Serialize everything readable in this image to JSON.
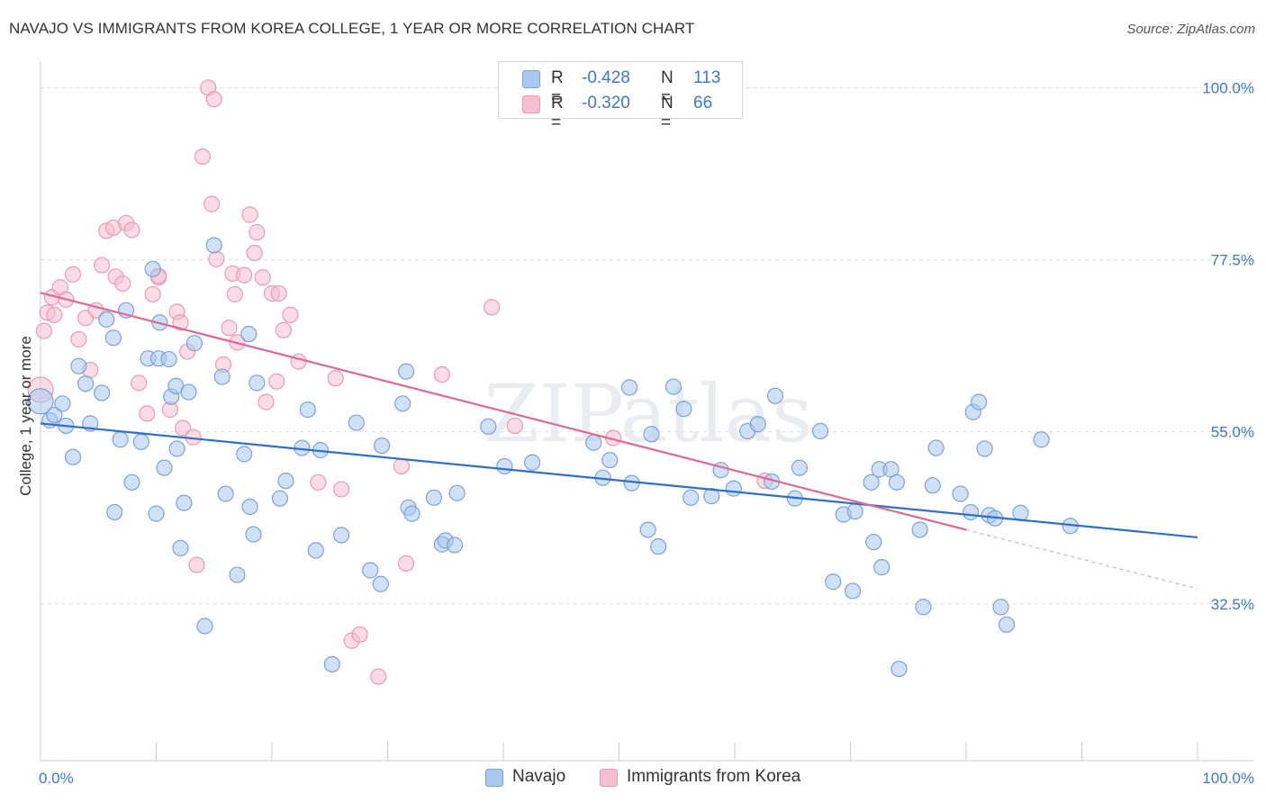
{
  "header": {
    "title": "NAVAJO VS IMMIGRANTS FROM KOREA COLLEGE, 1 YEAR OR MORE CORRELATION CHART",
    "source": "Source: ZipAtlas.com"
  },
  "stats": {
    "navajo": {
      "r_label": "R =",
      "r_value": "-0.428",
      "n_label": "N =",
      "n_value": "113"
    },
    "korea": {
      "r_label": "R =",
      "r_value": "-0.320",
      "n_label": "N =",
      "n_value": "66"
    }
  },
  "legend": {
    "navajo": "Navajo",
    "korea": "Immigrants from Korea"
  },
  "watermark": "ZIPatlas",
  "colors": {
    "navajo_fill": "#aac8ee",
    "navajo_stroke": "#7aa3d8",
    "navajo_line": "#2f6fcb",
    "korea_fill": "#f6bfcf",
    "korea_stroke": "#ec9ab3",
    "korea_line": "#e06893",
    "tick_label": "#3b78d0",
    "grid": "#dddddd"
  },
  "chart_data": {
    "type": "scatter",
    "ylabel": "College, 1 year or more",
    "xlabel": "",
    "xlim": [
      0,
      100
    ],
    "ylim": [
      12.0,
      103.0
    ],
    "x_tick_labels": [
      "0.0%",
      "100.0%"
    ],
    "y_ticks": [
      32.5,
      55.0,
      77.5,
      100.0
    ],
    "y_tick_labels": [
      "32.5%",
      "55.0%",
      "77.5%",
      "100.0%"
    ],
    "grid": true,
    "series": [
      {
        "name": "Navajo",
        "trend": {
          "x": [
            0,
            100
          ],
          "y": [
            56.1,
            41.2
          ]
        },
        "points": [
          [
            0.0,
            59.0,
            2
          ],
          [
            0.8,
            56.5,
            1
          ],
          [
            1.2,
            57.2,
            1
          ],
          [
            1.9,
            58.7,
            1
          ],
          [
            2.2,
            55.8,
            1
          ],
          [
            2.8,
            51.7,
            1
          ],
          [
            3.3,
            63.6,
            1
          ],
          [
            3.9,
            61.3,
            1
          ],
          [
            4.3,
            56.1,
            1
          ],
          [
            5.3,
            60.1,
            1
          ],
          [
            5.7,
            69.7,
            1
          ],
          [
            6.3,
            67.3,
            1
          ],
          [
            6.4,
            44.5,
            1
          ],
          [
            6.9,
            54.0,
            1
          ],
          [
            7.4,
            70.9,
            1
          ],
          [
            7.9,
            48.4,
            1
          ],
          [
            8.7,
            53.7,
            1
          ],
          [
            9.3,
            64.6,
            1
          ],
          [
            9.7,
            76.3,
            1
          ],
          [
            10.0,
            44.3,
            1
          ],
          [
            10.2,
            64.6,
            1
          ],
          [
            10.3,
            69.3,
            1
          ],
          [
            10.7,
            50.3,
            1
          ],
          [
            11.1,
            64.5,
            1
          ],
          [
            11.3,
            59.6,
            1
          ],
          [
            11.7,
            61.0,
            1
          ],
          [
            11.8,
            52.8,
            1
          ],
          [
            12.1,
            39.8,
            1
          ],
          [
            12.4,
            45.7,
            1
          ],
          [
            12.8,
            60.2,
            1
          ],
          [
            13.3,
            66.6,
            1
          ],
          [
            14.2,
            29.6,
            1
          ],
          [
            15.0,
            79.4,
            1
          ],
          [
            15.7,
            62.2,
            1
          ],
          [
            16.0,
            46.9,
            1
          ],
          [
            17.0,
            36.3,
            1
          ],
          [
            17.6,
            52.1,
            1
          ],
          [
            18.0,
            67.8,
            1
          ],
          [
            18.1,
            45.2,
            1
          ],
          [
            18.4,
            41.6,
            1
          ],
          [
            18.7,
            61.4,
            1
          ],
          [
            20.7,
            46.3,
            1
          ],
          [
            21.2,
            48.6,
            1
          ],
          [
            22.6,
            52.9,
            1
          ],
          [
            23.1,
            57.9,
            1
          ],
          [
            23.8,
            39.5,
            1
          ],
          [
            24.2,
            52.6,
            1
          ],
          [
            25.2,
            24.6,
            1
          ],
          [
            26.0,
            41.5,
            1
          ],
          [
            27.3,
            56.2,
            1
          ],
          [
            28.5,
            36.9,
            1
          ],
          [
            29.4,
            35.1,
            1
          ],
          [
            29.5,
            53.2,
            1
          ],
          [
            31.3,
            58.7,
            1
          ],
          [
            31.6,
            62.9,
            1
          ],
          [
            31.8,
            45.1,
            1
          ],
          [
            32.1,
            44.3,
            1
          ],
          [
            34.0,
            46.4,
            1
          ],
          [
            34.7,
            40.3,
            1
          ],
          [
            35.0,
            40.8,
            1
          ],
          [
            35.8,
            40.2,
            1
          ],
          [
            36.0,
            47.0,
            1
          ],
          [
            38.7,
            55.7,
            1
          ],
          [
            40.1,
            50.5,
            1
          ],
          [
            42.5,
            51.0,
            1
          ],
          [
            47.8,
            53.6,
            1
          ],
          [
            48.6,
            49.0,
            1
          ],
          [
            49.2,
            51.3,
            1
          ],
          [
            50.9,
            60.8,
            1
          ],
          [
            51.1,
            48.3,
            1
          ],
          [
            52.5,
            42.2,
            1
          ],
          [
            52.8,
            54.7,
            1
          ],
          [
            53.4,
            40.0,
            1
          ],
          [
            54.7,
            60.9,
            1
          ],
          [
            55.6,
            58.0,
            1
          ],
          [
            56.2,
            46.4,
            1
          ],
          [
            58.0,
            46.6,
            1
          ],
          [
            58.8,
            50.0,
            1
          ],
          [
            59.9,
            47.6,
            1
          ],
          [
            61.1,
            55.1,
            1
          ],
          [
            62.0,
            56.0,
            1
          ],
          [
            63.2,
            48.5,
            1
          ],
          [
            63.5,
            59.7,
            1
          ],
          [
            65.2,
            46.3,
            1
          ],
          [
            65.6,
            50.3,
            1
          ],
          [
            67.4,
            55.1,
            1
          ],
          [
            68.5,
            35.4,
            1
          ],
          [
            69.4,
            44.2,
            1
          ],
          [
            70.2,
            34.2,
            1
          ],
          [
            70.4,
            44.6,
            1
          ],
          [
            71.8,
            48.4,
            1
          ],
          [
            72.0,
            40.6,
            1
          ],
          [
            72.5,
            50.1,
            1
          ],
          [
            72.7,
            37.3,
            1
          ],
          [
            73.5,
            50.1,
            1
          ],
          [
            74.0,
            48.4,
            1
          ],
          [
            74.2,
            24.0,
            1
          ],
          [
            76.0,
            42.2,
            1
          ],
          [
            76.3,
            32.1,
            1
          ],
          [
            77.1,
            48.0,
            1
          ],
          [
            77.4,
            52.9,
            1
          ],
          [
            79.5,
            46.9,
            1
          ],
          [
            80.4,
            44.5,
            1
          ],
          [
            80.6,
            57.6,
            1
          ],
          [
            81.1,
            58.9,
            1
          ],
          [
            81.6,
            52.8,
            1
          ],
          [
            82.0,
            44.1,
            1
          ],
          [
            82.5,
            43.7,
            1
          ],
          [
            83.0,
            32.1,
            1
          ],
          [
            83.5,
            29.8,
            1
          ],
          [
            84.7,
            44.4,
            1
          ],
          [
            86.5,
            54.0,
            1
          ],
          [
            89.0,
            42.7,
            1
          ]
        ]
      },
      {
        "name": "Immigrants from Korea",
        "trend": {
          "x": [
            0,
            80
          ],
          "y": [
            73.2,
            42.2
          ]
        },
        "trend_dashed": {
          "x": [
            80,
            100
          ],
          "y": [
            42.2,
            34.5
          ]
        },
        "points": [
          [
            0.0,
            60.5,
            2
          ],
          [
            0.3,
            68.2,
            1
          ],
          [
            0.6,
            70.6,
            1
          ],
          [
            1.0,
            72.6,
            1
          ],
          [
            1.2,
            70.3,
            1
          ],
          [
            1.7,
            73.9,
            1
          ],
          [
            2.2,
            72.3,
            1
          ],
          [
            2.8,
            75.6,
            1
          ],
          [
            3.3,
            67.1,
            1
          ],
          [
            3.9,
            69.9,
            1
          ],
          [
            4.3,
            63.1,
            1
          ],
          [
            4.8,
            70.9,
            1
          ],
          [
            5.3,
            76.8,
            1
          ],
          [
            5.7,
            81.3,
            1
          ],
          [
            6.3,
            81.7,
            1
          ],
          [
            6.5,
            75.3,
            1
          ],
          [
            7.1,
            74.4,
            1
          ],
          [
            7.4,
            82.3,
            1
          ],
          [
            7.9,
            81.4,
            1
          ],
          [
            8.5,
            61.4,
            1
          ],
          [
            9.2,
            57.4,
            1
          ],
          [
            9.7,
            73.0,
            1
          ],
          [
            10.2,
            75.2,
            1
          ],
          [
            10.2,
            75.4,
            1
          ],
          [
            11.2,
            57.9,
            1
          ],
          [
            11.8,
            70.7,
            1
          ],
          [
            12.1,
            69.3,
            1
          ],
          [
            12.3,
            55.5,
            1
          ],
          [
            12.7,
            65.5,
            1
          ],
          [
            13.2,
            54.3,
            1
          ],
          [
            13.5,
            37.6,
            1
          ],
          [
            14.0,
            91.0,
            1
          ],
          [
            14.5,
            100.0,
            1
          ],
          [
            14.8,
            84.8,
            1
          ],
          [
            15.0,
            98.5,
            1
          ],
          [
            15.2,
            77.6,
            1
          ],
          [
            15.8,
            63.8,
            1
          ],
          [
            16.3,
            68.6,
            1
          ],
          [
            16.6,
            75.7,
            1
          ],
          [
            16.8,
            73.0,
            1
          ],
          [
            17.0,
            66.7,
            1
          ],
          [
            17.6,
            75.5,
            1
          ],
          [
            18.1,
            83.4,
            1
          ],
          [
            18.5,
            78.4,
            1
          ],
          [
            18.7,
            81.1,
            1
          ],
          [
            19.2,
            75.2,
            1
          ],
          [
            19.5,
            58.9,
            1
          ],
          [
            20.0,
            73.1,
            1
          ],
          [
            20.4,
            61.6,
            1
          ],
          [
            20.6,
            73.1,
            1
          ],
          [
            21.0,
            68.3,
            1
          ],
          [
            21.6,
            70.3,
            1
          ],
          [
            22.3,
            64.2,
            1
          ],
          [
            24.0,
            48.4,
            1
          ],
          [
            25.5,
            62.0,
            1
          ],
          [
            26.0,
            47.5,
            1
          ],
          [
            26.9,
            27.7,
            1
          ],
          [
            27.6,
            28.5,
            1
          ],
          [
            29.2,
            23.0,
            1
          ],
          [
            31.2,
            50.5,
            1
          ],
          [
            31.6,
            37.8,
            1
          ],
          [
            34.7,
            62.5,
            1
          ],
          [
            39.0,
            71.3,
            1
          ],
          [
            41.0,
            55.8,
            1
          ],
          [
            49.5,
            54.2,
            1
          ],
          [
            62.6,
            48.6,
            1
          ]
        ]
      }
    ]
  }
}
